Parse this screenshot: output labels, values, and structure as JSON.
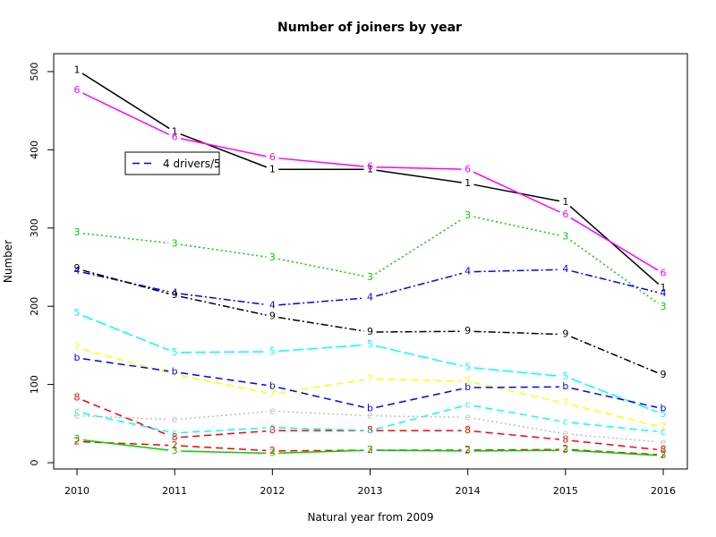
{
  "chart_data": {
    "type": "line",
    "title": "Number of joiners by year",
    "xlabel": "Natural year from 2009",
    "ylabel": "Number",
    "x": [
      2010,
      2011,
      2012,
      2013,
      2014,
      2015,
      2016
    ],
    "xlim": [
      2010,
      2016
    ],
    "ylim": [
      0,
      500
    ],
    "yticks": [
      0,
      100,
      200,
      300,
      400,
      500
    ],
    "grid": false,
    "legend": {
      "position": "top-left",
      "entries": [
        {
          "label": "4 drivers/5",
          "color": "#0000ff",
          "dash": "dashed"
        }
      ]
    },
    "series": [
      {
        "label": "1",
        "color": "#000000",
        "dash": "solid",
        "values": [
          502,
          423,
          375,
          375,
          357,
          333,
          223
        ]
      },
      {
        "label": "6",
        "color": "#ff00ff",
        "dash": "solid",
        "values": [
          476,
          416,
          390,
          378,
          375,
          317,
          242
        ]
      },
      {
        "label": "3",
        "color": "#00cd00",
        "dash": "dotted",
        "values": [
          294,
          280,
          262,
          237,
          316,
          289,
          199
        ]
      },
      {
        "label": "4",
        "color": "#0000ff",
        "dash": "dashdot",
        "values": [
          245,
          217,
          201,
          211,
          244,
          247,
          216
        ]
      },
      {
        "label": "9",
        "color": "#000000",
        "dash": "dashdot",
        "values": [
          248,
          214,
          187,
          167,
          168,
          164,
          112
        ]
      },
      {
        "label": "5",
        "color": "#00ffff",
        "dash": "longdash",
        "values": [
          191,
          141,
          142,
          151,
          122,
          110,
          62
        ]
      },
      {
        "label": "7",
        "color": "#ffff00",
        "dash": "dashed",
        "values": [
          147,
          113,
          88,
          107,
          104,
          76,
          45
        ]
      },
      {
        "label": "b",
        "color": "#0000ff",
        "dash": "dashed",
        "values": [
          134,
          116,
          98,
          69,
          96,
          97,
          69
        ]
      },
      {
        "label": "8",
        "color": "#ff0000",
        "dash": "dashed",
        "values": [
          83,
          32,
          41,
          41,
          41,
          29,
          16
        ]
      },
      {
        "label": "c",
        "color": "#00ffff",
        "dash": "dashed",
        "values": [
          65,
          38,
          45,
          41,
          74,
          52,
          39
        ]
      },
      {
        "label": "e",
        "color": "#bebebe",
        "dash": "dotted",
        "values": [
          60,
          55,
          66,
          60,
          58,
          37,
          26
        ]
      },
      {
        "label": "2",
        "color": "#ff0000",
        "dash": "dashed",
        "values": [
          27,
          22,
          15,
          16,
          16,
          17,
          10
        ]
      },
      {
        "label": "3",
        "color": "#00cd00",
        "dash": "solid",
        "values": [
          30,
          15,
          12,
          16,
          15,
          16,
          9
        ]
      }
    ]
  }
}
